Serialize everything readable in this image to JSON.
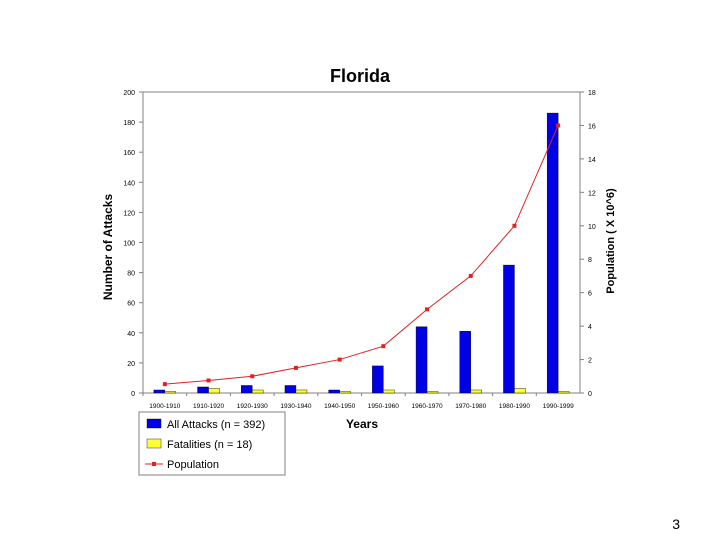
{
  "slide": {
    "page_number": "3"
  },
  "chart_data": {
    "type": "bar",
    "title": "Florida",
    "xlabel": "Years",
    "ylabel": "Number of Attacks",
    "y2label": "Population ( X 10^6)",
    "categories": [
      "1900-1910",
      "1910-1920",
      "1920-1930",
      "1930-1940",
      "1940-1950",
      "1950-1960",
      "1960-1970",
      "1970-1980",
      "1980-1990",
      "1990-1999"
    ],
    "ylim": [
      0,
      200
    ],
    "yticks": [
      0,
      20,
      40,
      60,
      80,
      100,
      120,
      140,
      160,
      180,
      200
    ],
    "y2lim": [
      0,
      18
    ],
    "y2ticks": [
      0,
      2,
      4,
      6,
      8,
      10,
      12,
      14,
      16,
      18
    ],
    "series": [
      {
        "name": "All Attacks (n = 392)",
        "type": "bar",
        "axis": "left",
        "color": "#0000e6",
        "values": [
          2,
          4,
          5,
          5,
          2,
          18,
          44,
          41,
          85,
          186
        ]
      },
      {
        "name": "Fatalities (n = 18)",
        "type": "bar",
        "axis": "left",
        "color": "#ffff33",
        "values": [
          1,
          3,
          2,
          2,
          1,
          2,
          1,
          2,
          3,
          1
        ]
      },
      {
        "name": "Population",
        "type": "line",
        "axis": "right",
        "color": "#dd2222",
        "values": [
          0.53,
          0.75,
          1.0,
          1.5,
          2.0,
          2.8,
          5.0,
          7.0,
          10.0,
          16.0
        ]
      }
    ],
    "grid": false,
    "legend_position": "bottom-left"
  }
}
